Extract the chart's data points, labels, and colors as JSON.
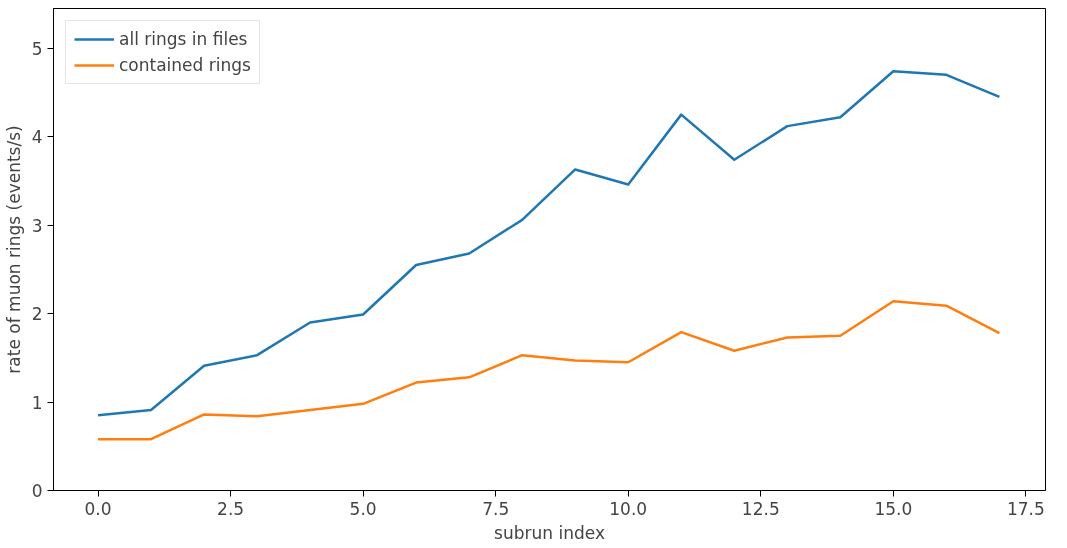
{
  "chart_data": {
    "type": "line",
    "xlabel": "subrun index",
    "ylabel": "rate of muon rings (events/s)",
    "x": [
      0,
      1,
      2,
      3,
      4,
      5,
      6,
      7,
      8,
      9,
      10,
      11,
      12,
      13,
      14,
      15,
      16,
      17
    ],
    "series": [
      {
        "name": "all rings in files",
        "color": "#1f77b4",
        "values": [
          0.85,
          0.91,
          1.41,
          1.53,
          1.9,
          1.99,
          2.55,
          2.68,
          3.06,
          3.63,
          3.46,
          4.25,
          3.74,
          4.12,
          4.22,
          4.74,
          4.7,
          4.45
        ]
      },
      {
        "name": "contained rings",
        "color": "#ff7f0e",
        "values": [
          0.58,
          0.58,
          0.86,
          0.84,
          0.91,
          0.98,
          1.22,
          1.28,
          1.53,
          1.47,
          1.45,
          1.79,
          1.58,
          1.73,
          1.75,
          2.14,
          2.09,
          1.78
        ]
      }
    ],
    "xlim": [
      -0.84,
      17.87
    ],
    "ylim": [
      0,
      5.45
    ],
    "xticks": [
      {
        "value": 0,
        "label": "0.0"
      },
      {
        "value": 2.5,
        "label": "2.5"
      },
      {
        "value": 5,
        "label": "5.0"
      },
      {
        "value": 7.5,
        "label": "7.5"
      },
      {
        "value": 10,
        "label": "10.0"
      },
      {
        "value": 12.5,
        "label": "12.5"
      },
      {
        "value": 15,
        "label": "15.0"
      },
      {
        "value": 17.5,
        "label": "17.5"
      }
    ],
    "yticks": [
      0,
      1,
      2,
      3,
      4,
      5
    ],
    "legend": "top left",
    "marker": "none",
    "line_style": "solid"
  }
}
